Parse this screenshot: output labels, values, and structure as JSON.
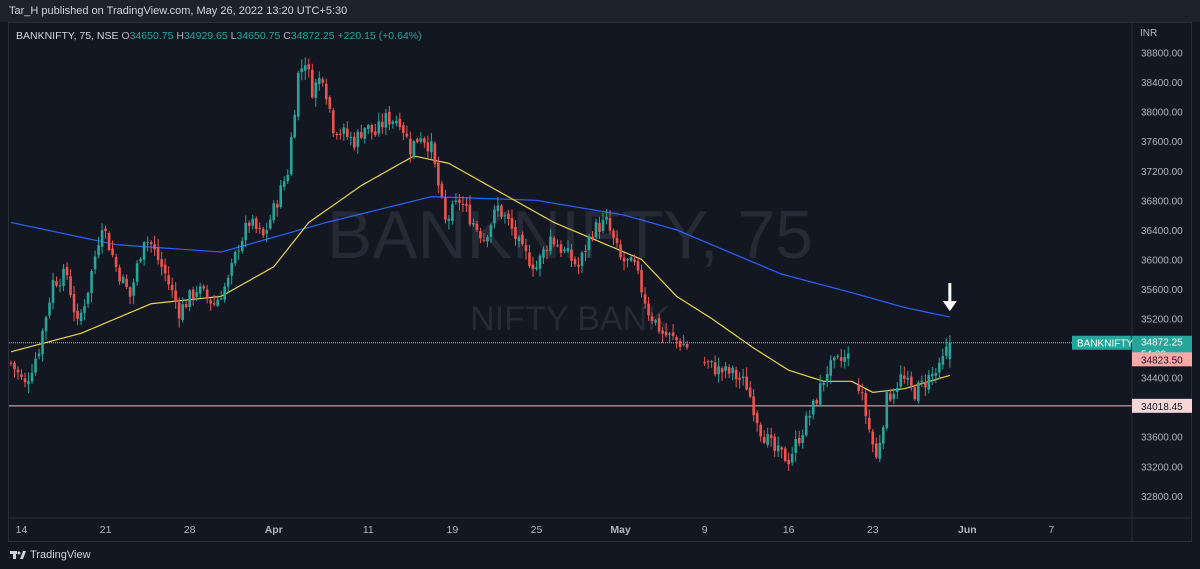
{
  "header": {
    "published": "Tar_H published on TradingView.com, May 26, 2022 13:20 UTC+5:30"
  },
  "legend": {
    "symbol": "BANKNIFTY, 75, NSE",
    "o_label": "O",
    "o": "34650.75",
    "h_label": "H",
    "h": "34929.65",
    "l_label": "L",
    "l": "34650.75",
    "c_label": "C",
    "c": "34872.25",
    "change": "+220.15 (+0.64%)"
  },
  "watermark": {
    "symbol": "BANKNIFTY, 75",
    "name": "NIFTY BANK"
  },
  "footer": {
    "brand": "TradingView"
  },
  "colors": {
    "up": "#26a69a",
    "down": "#ef5350",
    "ema_fast": "#e8d44d",
    "ema_slow": "#2962ff",
    "background": "#131722"
  },
  "chart_data": {
    "type": "candlestick",
    "currency": "INR",
    "ylim": [
      32500,
      39200
    ],
    "y_ticks": [
      32800,
      33200,
      33600,
      34000,
      34400,
      34800,
      35200,
      35600,
      36000,
      36400,
      36800,
      37200,
      37600,
      38000,
      38400,
      38800
    ],
    "y_tick_labels": [
      "32800.00",
      "33200.00",
      "33600.00",
      "34000.00",
      "34400.00",
      "34800.00",
      "35200.00",
      "35600.00",
      "36000.00",
      "36400.00",
      "36800.00",
      "37200.00",
      "37600.00",
      "38000.00",
      "38400.00",
      "38800.00"
    ],
    "x_labels": [
      "14",
      "21",
      "28",
      "Apr",
      "11",
      "19",
      "25",
      "May",
      "9",
      "16",
      "23",
      "Jun",
      "7"
    ],
    "x_label_bar_index": [
      3,
      27,
      51,
      75,
      102,
      126,
      150,
      174,
      198,
      222,
      246,
      273,
      297
    ],
    "horizontal_lines": [
      {
        "label": "BANKNIFTY",
        "price": "34872.25",
        "countdown": "54:03",
        "value": 34872.25,
        "style": "last"
      },
      {
        "label": "",
        "price": "34823.50",
        "value": 34823.5,
        "style": "red"
      },
      {
        "label": "",
        "price": "34018.45",
        "value": 34018.45,
        "style": "support"
      }
    ],
    "annotations": [
      {
        "type": "arrow-down",
        "bar_index": 268,
        "value": 35300
      }
    ],
    "anchors": [
      [
        0,
        34600
      ],
      [
        4,
        34300
      ],
      [
        8,
        34800
      ],
      [
        12,
        35700
      ],
      [
        16,
        35800
      ],
      [
        19,
        35100
      ],
      [
        22,
        35600
      ],
      [
        26,
        36500
      ],
      [
        30,
        35900
      ],
      [
        34,
        35500
      ],
      [
        38,
        36300
      ],
      [
        40,
        36200
      ],
      [
        44,
        35800
      ],
      [
        48,
        35300
      ],
      [
        53,
        35600
      ],
      [
        58,
        35400
      ],
      [
        62,
        35700
      ],
      [
        65,
        36200
      ],
      [
        68,
        36500
      ],
      [
        72,
        36300
      ],
      [
        76,
        36800
      ],
      [
        79,
        37200
      ],
      [
        82,
        38500
      ],
      [
        84,
        38700
      ],
      [
        86,
        38300
      ],
      [
        89,
        38500
      ],
      [
        92,
        37800
      ],
      [
        95,
        37700
      ],
      [
        98,
        37600
      ],
      [
        101,
        37800
      ],
      [
        104,
        37700
      ],
      [
        107,
        37900
      ],
      [
        111,
        37900
      ],
      [
        114,
        37500
      ],
      [
        117,
        37700
      ],
      [
        120,
        37500
      ],
      [
        124,
        36500
      ],
      [
        128,
        36800
      ],
      [
        132,
        36500
      ],
      [
        135,
        36300
      ],
      [
        139,
        36700
      ],
      [
        142,
        36500
      ],
      [
        146,
        36100
      ],
      [
        150,
        35900
      ],
      [
        154,
        36300
      ],
      [
        158,
        36100
      ],
      [
        162,
        35900
      ],
      [
        166,
        36400
      ],
      [
        170,
        36500
      ],
      [
        174,
        36000
      ],
      [
        178,
        35900
      ],
      [
        182,
        35300
      ],
      [
        186,
        35000
      ],
      [
        190,
        34900
      ],
      [
        194,
        34800
      ],
      [
        198,
        34600
      ],
      [
        202,
        34500
      ],
      [
        206,
        34450
      ],
      [
        210,
        34300
      ],
      [
        214,
        33700
      ],
      [
        218,
        33400
      ],
      [
        222,
        33300
      ],
      [
        225,
        33600
      ],
      [
        229,
        34000
      ],
      [
        233,
        34500
      ],
      [
        236,
        34600
      ],
      [
        240,
        34700
      ],
      [
        244,
        33900
      ],
      [
        247,
        33300
      ],
      [
        250,
        34100
      ],
      [
        254,
        34400
      ],
      [
        258,
        34200
      ],
      [
        262,
        34400
      ],
      [
        265,
        34500
      ],
      [
        268,
        34880
      ]
    ],
    "gaps": [
      [
        193,
        198
      ],
      [
        239,
        242
      ]
    ],
    "ema_fast_anchors": [
      [
        0,
        34750
      ],
      [
        20,
        35000
      ],
      [
        40,
        35400
      ],
      [
        60,
        35500
      ],
      [
        75,
        35900
      ],
      [
        85,
        36500
      ],
      [
        100,
        37000
      ],
      [
        115,
        37400
      ],
      [
        125,
        37300
      ],
      [
        140,
        36900
      ],
      [
        155,
        36500
      ],
      [
        170,
        36200
      ],
      [
        180,
        36000
      ],
      [
        190,
        35500
      ],
      [
        200,
        35200
      ],
      [
        212,
        34800
      ],
      [
        222,
        34500
      ],
      [
        232,
        34350
      ],
      [
        240,
        34350
      ],
      [
        246,
        34200
      ],
      [
        255,
        34250
      ],
      [
        268,
        34430
      ]
    ],
    "ema_slow_anchors": [
      [
        0,
        36500
      ],
      [
        30,
        36200
      ],
      [
        60,
        36100
      ],
      [
        90,
        36500
      ],
      [
        120,
        36850
      ],
      [
        150,
        36800
      ],
      [
        175,
        36600
      ],
      [
        190,
        36400
      ],
      [
        205,
        36100
      ],
      [
        220,
        35800
      ],
      [
        240,
        35550
      ],
      [
        255,
        35350
      ],
      [
        268,
        35220
      ]
    ]
  }
}
